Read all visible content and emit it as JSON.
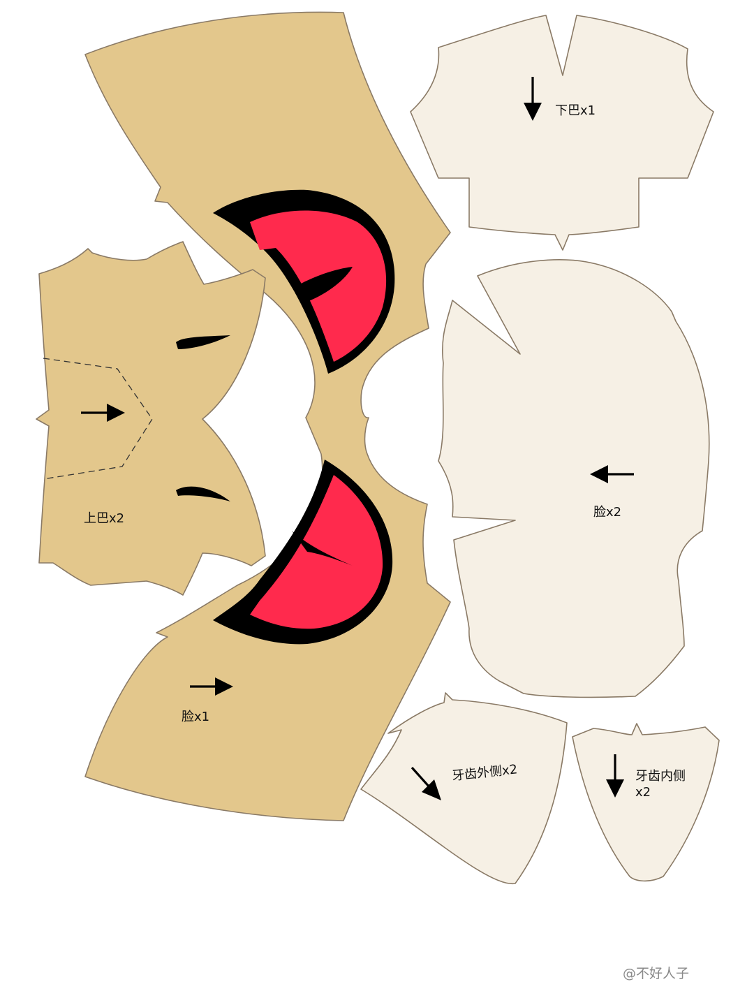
{
  "colors": {
    "tan": "#e3c78c",
    "cream": "#f6f0e5",
    "outline": "#8a7a66",
    "eye_red": "#ff2a4d",
    "eye_black": "#000000"
  },
  "pieces": {
    "face_front": {
      "label": "脸x1"
    },
    "upper_jaw": {
      "label": "上巴x2"
    },
    "lower_jaw": {
      "label": "下巴x1"
    },
    "face_side": {
      "label": "脸x2"
    },
    "teeth_outer": {
      "label": "牙齿外侧x2"
    },
    "teeth_inner": {
      "label_line1": "牙齿内侧",
      "label_line2": "x2"
    }
  },
  "watermark": "@不好人子"
}
